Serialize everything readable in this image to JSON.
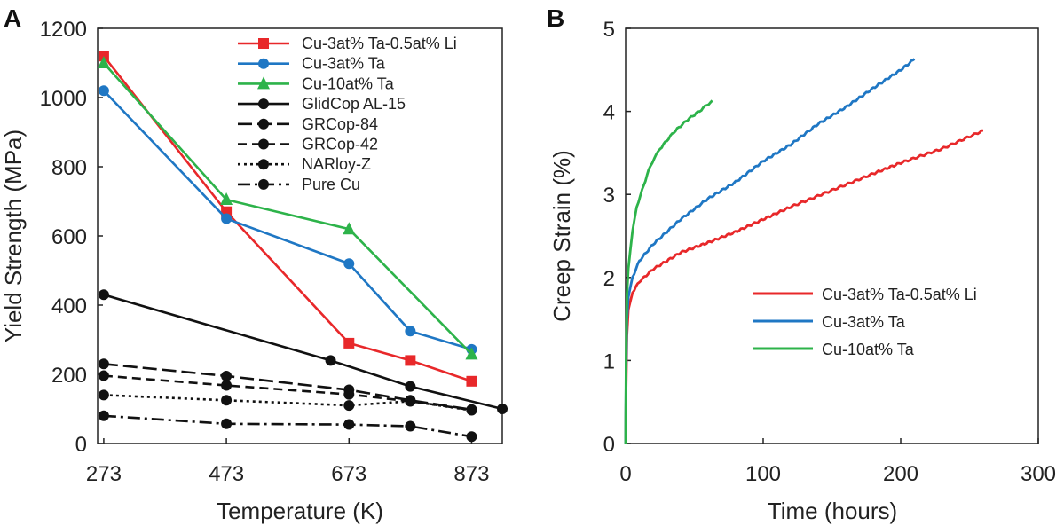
{
  "chart_data": [
    {
      "panel": "A",
      "type": "line",
      "xlabel": "Temperature (K)",
      "ylabel": "Yield Strength (MPa)",
      "xlim": [
        263,
        923
      ],
      "ylim": [
        0,
        1200
      ],
      "xticks": [
        "273",
        "473",
        "673",
        "873"
      ],
      "xtick_values": [
        273,
        473,
        673,
        873
      ],
      "yticks": [
        "0",
        "200",
        "400",
        "600",
        "800",
        "1000",
        "1200"
      ],
      "ytick_values": [
        0,
        200,
        400,
        600,
        800,
        1000,
        1200
      ],
      "legend_position": "top-right",
      "series": [
        {
          "name": "Cu-3at% Ta-0.5at% Li",
          "color": "#e8282a",
          "marker": "square",
          "dash": "solid",
          "points": [
            [
              273,
              1120
            ],
            [
              473,
              670
            ],
            [
              673,
              290
            ],
            [
              773,
              240
            ],
            [
              873,
              180
            ]
          ]
        },
        {
          "name": "Cu-3at% Ta",
          "color": "#1f77c4",
          "marker": "circle",
          "dash": "solid",
          "points": [
            [
              273,
              1020
            ],
            [
              473,
              650
            ],
            [
              673,
              520
            ],
            [
              773,
              325
            ],
            [
              873,
              272
            ]
          ]
        },
        {
          "name": "Cu-10at% Ta",
          "color": "#2db34a",
          "marker": "triangle",
          "dash": "solid",
          "points": [
            [
              273,
              1100
            ],
            [
              473,
              705
            ],
            [
              673,
              620
            ],
            [
              873,
              258
            ]
          ]
        },
        {
          "name": "GlidCop AL-15",
          "color": "#111111",
          "marker": "circle",
          "dash": "solid",
          "points": [
            [
              273,
              430
            ],
            [
              643,
              240
            ],
            [
              773,
              165
            ],
            [
              923,
              100
            ]
          ]
        },
        {
          "name": "GRCop-84",
          "color": "#111111",
          "marker": "circle",
          "dash": "longdash",
          "points": [
            [
              273,
              230
            ],
            [
              473,
              195
            ],
            [
              673,
              155
            ],
            [
              773,
              125
            ],
            [
              873,
              98
            ]
          ]
        },
        {
          "name": "GRCop-42",
          "color": "#111111",
          "marker": "circle",
          "dash": "dash",
          "points": [
            [
              273,
              196
            ],
            [
              473,
              168
            ],
            [
              673,
              142
            ],
            [
              773,
              122
            ],
            [
              873,
              97
            ]
          ]
        },
        {
          "name": "NARloy-Z",
          "color": "#111111",
          "marker": "circle",
          "dash": "dot",
          "points": [
            [
              273,
              140
            ],
            [
              473,
              125
            ],
            [
              673,
              110
            ],
            [
              773,
              122
            ],
            [
              873,
              96
            ]
          ]
        },
        {
          "name": "Pure Cu",
          "color": "#111111",
          "marker": "circle",
          "dash": "dashdot",
          "points": [
            [
              273,
              80
            ],
            [
              473,
              57
            ],
            [
              673,
              55
            ],
            [
              773,
              50
            ],
            [
              873,
              20
            ]
          ]
        }
      ]
    },
    {
      "panel": "B",
      "type": "line",
      "xlabel": "Time (hours)",
      "ylabel": "Creep Strain (%)",
      "xlim": [
        0,
        300
      ],
      "ylim": [
        0,
        5
      ],
      "xticks": [
        "0",
        "100",
        "200",
        "300"
      ],
      "xtick_values": [
        0,
        100,
        200,
        300
      ],
      "yticks": [
        "0",
        "1",
        "2",
        "3",
        "4",
        "5"
      ],
      "ytick_values": [
        0,
        1,
        2,
        3,
        4,
        5
      ],
      "legend_position": "lower-right",
      "series": [
        {
          "name": "Cu-3at% Ta-0.5at% Li",
          "color": "#e8282a",
          "points": [
            [
              0,
              0
            ],
            [
              0.3,
              0.6
            ],
            [
              1,
              1.3
            ],
            [
              2,
              1.6
            ],
            [
              5,
              1.82
            ],
            [
              10,
              1.95
            ],
            [
              20,
              2.1
            ],
            [
              40,
              2.3
            ],
            [
              60,
              2.42
            ],
            [
              80,
              2.55
            ],
            [
              100,
              2.7
            ],
            [
              120,
              2.85
            ],
            [
              150,
              3.05
            ],
            [
              180,
              3.25
            ],
            [
              200,
              3.38
            ],
            [
              230,
              3.55
            ],
            [
              260,
              3.77
            ]
          ]
        },
        {
          "name": "Cu-3at% Ta",
          "color": "#1f77c4",
          "points": [
            [
              0,
              0
            ],
            [
              0.3,
              0.8
            ],
            [
              1,
              1.5
            ],
            [
              2,
              1.75
            ],
            [
              5,
              2.0
            ],
            [
              10,
              2.2
            ],
            [
              20,
              2.4
            ],
            [
              40,
              2.7
            ],
            [
              60,
              2.95
            ],
            [
              80,
              3.15
            ],
            [
              100,
              3.4
            ],
            [
              120,
              3.6
            ],
            [
              140,
              3.85
            ],
            [
              160,
              4.05
            ],
            [
              180,
              4.28
            ],
            [
              200,
              4.5
            ],
            [
              210,
              4.63
            ]
          ]
        },
        {
          "name": "Cu-10at% Ta",
          "color": "#2db34a",
          "points": [
            [
              0,
              0
            ],
            [
              0.3,
              1.0
            ],
            [
              1,
              1.8
            ],
            [
              2,
              2.1
            ],
            [
              5,
              2.55
            ],
            [
              8,
              2.85
            ],
            [
              12,
              3.05
            ],
            [
              18,
              3.35
            ],
            [
              25,
              3.55
            ],
            [
              35,
              3.75
            ],
            [
              45,
              3.9
            ],
            [
              55,
              4.02
            ],
            [
              63,
              4.13
            ]
          ]
        }
      ]
    }
  ]
}
